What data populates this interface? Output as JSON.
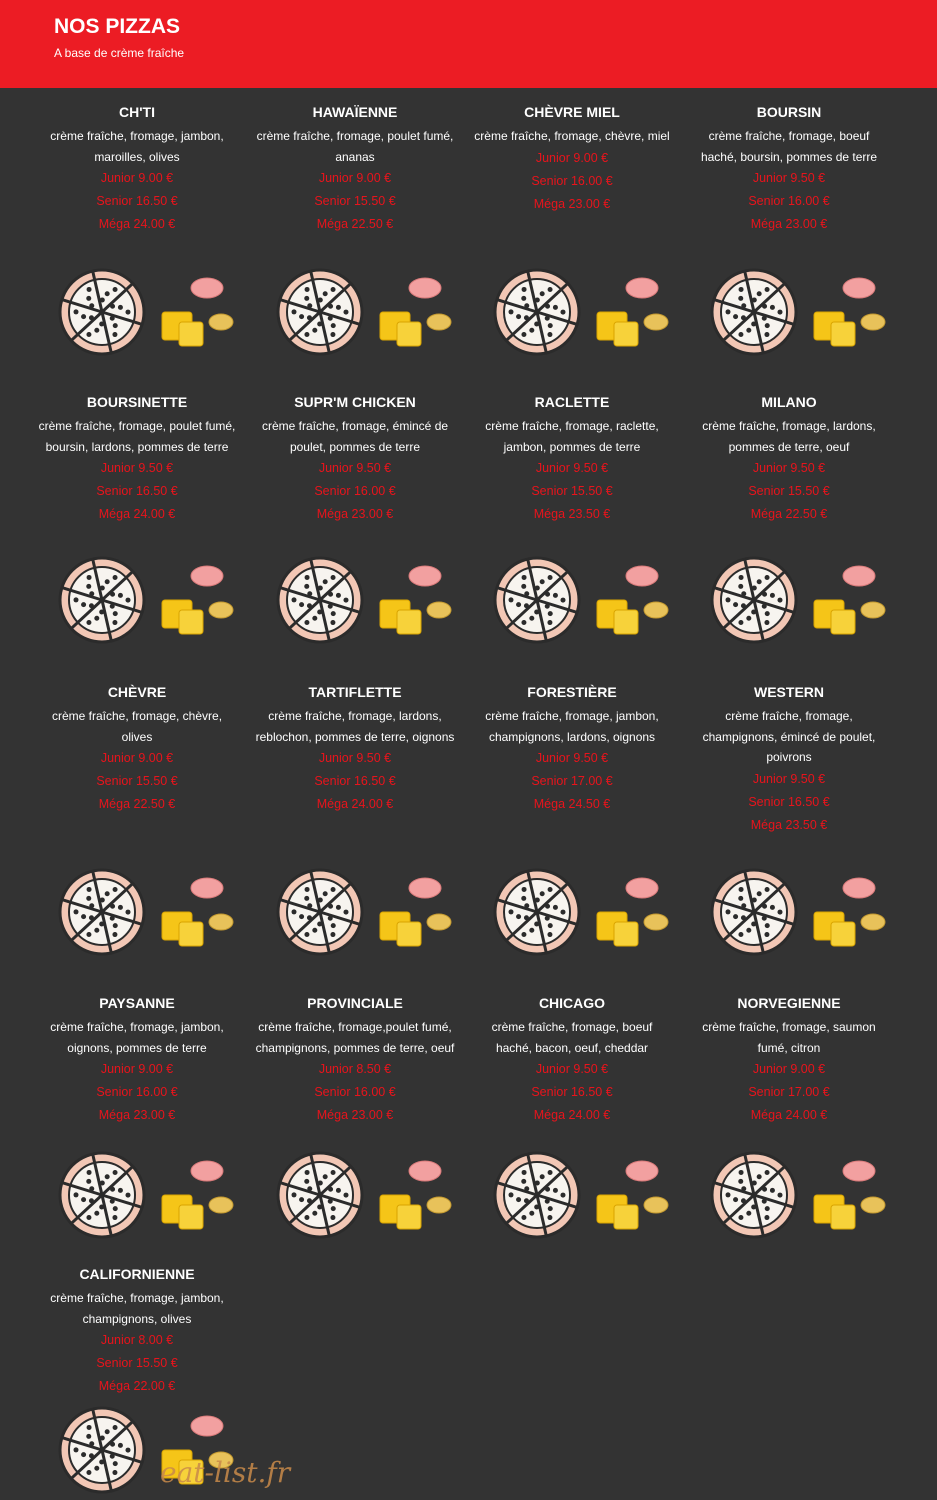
{
  "header": {
    "title": "NOS PIZZAS",
    "subtitle": "A base de crème fraîche"
  },
  "items": [
    {
      "name": "CH'TI",
      "description": "crème fraîche, fromage, jambon, maroilles, olives",
      "prices": [
        "Junior 9.00 €",
        "Senior 16.50 €",
        "Méga 24.00 €"
      ]
    },
    {
      "name": "HAWAÏENNE",
      "description": "crème fraîche, fromage, poulet fumé, ananas",
      "prices": [
        "Junior 9.00 €",
        "Senior 15.50 €",
        "Méga 22.50 €"
      ]
    },
    {
      "name": "CHÈVRE MIEL",
      "description": "crème fraîche, fromage, chèvre, miel",
      "prices": [
        "Junior 9.00 €",
        "Senior 16.00 €",
        "Méga 23.00 €"
      ]
    },
    {
      "name": "BOURSIN",
      "description": "crème fraîche, fromage, boeuf haché, boursin, pommes de terre",
      "prices": [
        "Junior 9.50 €",
        "Senior 16.00 €",
        "Méga 23.00 €"
      ]
    },
    {
      "name": "BOURSINETTE",
      "description": "crème fraîche, fromage, poulet fumé, boursin, lardons, pommes de terre",
      "prices": [
        "Junior 9.50 €",
        "Senior 16.50 €",
        "Méga 24.00 €"
      ]
    },
    {
      "name": "SUPR'M CHICKEN",
      "description": "crème fraîche, fromage, émincé de poulet, pommes de terre",
      "prices": [
        "Junior 9.50 €",
        "Senior 16.00 €",
        "Méga 23.00 €"
      ]
    },
    {
      "name": "RACLETTE",
      "description": "crème fraîche, fromage, raclette, jambon, pommes de terre",
      "prices": [
        "Junior 9.50 €",
        "Senior 15.50 €",
        "Méga 23.50 €"
      ]
    },
    {
      "name": "MILANO",
      "description": "crème fraîche, fromage, lardons, pommes de terre, oeuf",
      "prices": [
        "Junior 9.50 €",
        "Senior 15.50 €",
        "Méga 22.50 €"
      ]
    },
    {
      "name": "CHÈVRE",
      "description": "crème fraîche, fromage, chèvre, olives",
      "prices": [
        "Junior 9.00 €",
        "Senior 15.50 €",
        "Méga 22.50 €"
      ]
    },
    {
      "name": "TARTIFLETTE",
      "description": "crème fraîche, fromage, lardons, reblochon, pommes de terre, oignons",
      "prices": [
        "Junior 9.50 €",
        "Senior 16.50 €",
        "Méga 24.00 €"
      ]
    },
    {
      "name": "FORESTIÈRE",
      "description": "crème fraîche, fromage, jambon, champignons, lardons, oignons",
      "prices": [
        "Junior 9.50 €",
        "Senior 17.00 €",
        "Méga 24.50 €"
      ]
    },
    {
      "name": "WESTERN",
      "description": "crème fraîche, fromage, champignons, émincé de poulet, poivrons",
      "prices": [
        "Junior 9.50 €",
        "Senior 16.50 €",
        "Méga 23.50 €"
      ]
    },
    {
      "name": "PAYSANNE",
      "description": "crème fraîche, fromage, jambon, oignons, pommes de terre",
      "prices": [
        "Junior 9.00 €",
        "Senior 16.00 €",
        "Méga 23.00 €"
      ]
    },
    {
      "name": "PROVINCIALE",
      "description": "crème fraîche, fromage,poulet fumé, champignons, pommes de terre, oeuf",
      "prices": [
        "Junior 8.50 €",
        "Senior 16.00 €",
        "Méga 23.00 €"
      ]
    },
    {
      "name": "CHICAGO",
      "description": "crème fraîche, fromage, boeuf haché, bacon, oeuf, cheddar",
      "prices": [
        "Junior 9.50 €",
        "Senior 16.50 €",
        "Méga 24.00 €"
      ]
    },
    {
      "name": "NORVEGIENNE",
      "description": "crème fraîche, fromage, saumon fumé, citron",
      "prices": [
        "Junior 9.00 €",
        "Senior 17.00 €",
        "Méga 24.00 €"
      ]
    },
    {
      "name": "CALIFORNIENNE",
      "description": "crème fraîche, fromage, jambon, champignons, olives",
      "prices": [
        "Junior 8.00 €",
        "Senior 15.50 €",
        "Méga 22.00 €"
      ]
    }
  ],
  "watermark": "eat-list.fr"
}
